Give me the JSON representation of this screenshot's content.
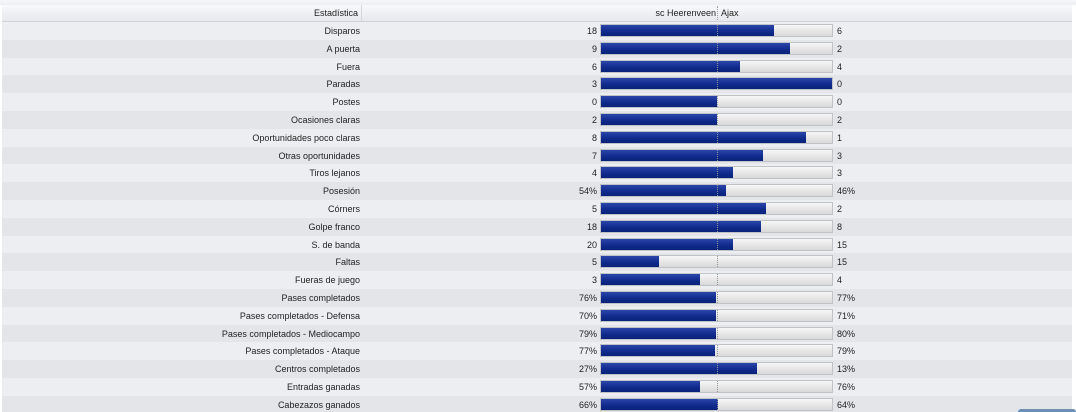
{
  "header": {
    "stat_label": "Estadística",
    "home_team": "sc Heerenveen",
    "away_team": "Ajax"
  },
  "colors": {
    "bar_fill": "#0f2a8c",
    "bar_track": "#e6e6e6"
  },
  "rows": [
    {
      "label": "Disparos",
      "home": "18",
      "away": "6",
      "home_share": 0.75
    },
    {
      "label": "A puerta",
      "home": "9",
      "away": "2",
      "home_share": 0.818
    },
    {
      "label": "Fuera",
      "home": "6",
      "away": "4",
      "home_share": 0.6
    },
    {
      "label": "Paradas",
      "home": "3",
      "away": "0",
      "home_share": 1.0
    },
    {
      "label": "Postes",
      "home": "0",
      "away": "0",
      "home_share": 0.5
    },
    {
      "label": "Ocasiones claras",
      "home": "2",
      "away": "2",
      "home_share": 0.5
    },
    {
      "label": "Oportunidades poco claras",
      "home": "8",
      "away": "1",
      "home_share": 0.889
    },
    {
      "label": "Otras oportunidades",
      "home": "7",
      "away": "3",
      "home_share": 0.7
    },
    {
      "label": "Tiros lejanos",
      "home": "4",
      "away": "3",
      "home_share": 0.571
    },
    {
      "label": "Posesión",
      "home": "54%",
      "away": "46%",
      "home_share": 0.54
    },
    {
      "label": "Córners",
      "home": "5",
      "away": "2",
      "home_share": 0.714
    },
    {
      "label": "Golpe franco",
      "home": "18",
      "away": "8",
      "home_share": 0.692
    },
    {
      "label": "S. de banda",
      "home": "20",
      "away": "15",
      "home_share": 0.571
    },
    {
      "label": "Faltas",
      "home": "5",
      "away": "15",
      "home_share": 0.25
    },
    {
      "label": "Fueras de juego",
      "home": "3",
      "away": "4",
      "home_share": 0.429
    },
    {
      "label": "Pases completados",
      "home": "76%",
      "away": "77%",
      "home_share": 0.497
    },
    {
      "label": "Pases completados - Defensa",
      "home": "70%",
      "away": "71%",
      "home_share": 0.496
    },
    {
      "label": "Pases completados - Mediocampo",
      "home": "79%",
      "away": "80%",
      "home_share": 0.497
    },
    {
      "label": "Pases completados - Ataque",
      "home": "77%",
      "away": "79%",
      "home_share": 0.494
    },
    {
      "label": "Centros completados",
      "home": "27%",
      "away": "13%",
      "home_share": 0.675
    },
    {
      "label": "Entradas ganadas",
      "home": "57%",
      "away": "76%",
      "home_share": 0.429
    },
    {
      "label": "Cabezazos ganados",
      "home": "66%",
      "away": "64%",
      "home_share": 0.508
    }
  ]
}
